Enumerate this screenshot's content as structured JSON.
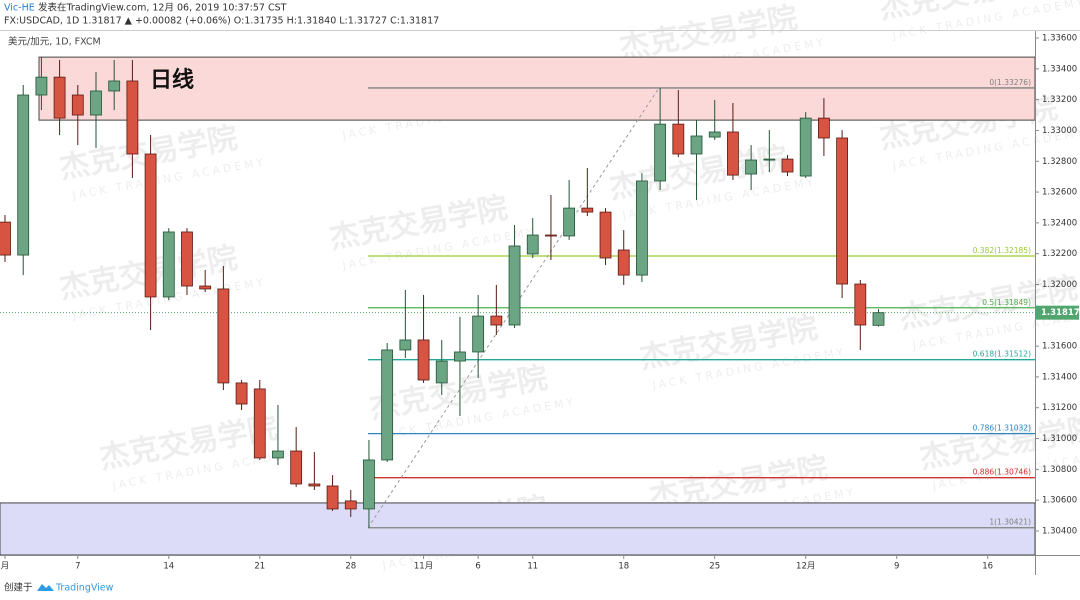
{
  "header": {
    "author": "Vic-HE",
    "published": "发表在TradingView.com, 12月 06, 2019 10:37:57 CST",
    "quote": "FX:USDCAD, 1D 1.31817 ▲ +0.00082 (+0.06%) O:1.31735 H:1.31840 L:1.31727 C:1.31817"
  },
  "footer": {
    "prefix": "创建于",
    "brand": "TradingView"
  },
  "watermark": {
    "cn": "杰克交易学院",
    "en": "JACK TRADING ACADEMY"
  },
  "chart_data": {
    "type": "candlestick",
    "legend": "美元/加元, 1D, FXCM",
    "up_color": "#6ba583",
    "down_color": "#d75442",
    "up_border": "#225437",
    "down_border": "#5b1a13",
    "open": [
      1.32405,
      1.32191,
      1.3323,
      1.33346,
      1.3323,
      1.331,
      1.33256,
      1.33321,
      1.32847,
      1.31919,
      1.32341,
      1.3199,
      1.31971,
      1.31361,
      1.31322,
      1.30874,
      1.30919,
      1.30705,
      1.30692,
      1.30595,
      1.30543,
      1.30861,
      1.31575,
      1.3164,
      1.31361,
      1.31503,
      1.31562,
      1.31795,
      1.31737,
      1.32198,
      1.32321,
      1.32315,
      1.32496,
      1.3247,
      1.32224,
      1.32061,
      1.32672,
      1.33041,
      1.32847,
      1.32957,
      1.3299,
      1.32717,
      1.32808,
      1.32814,
      1.32704,
      1.3308,
      1.32951,
      1.32003,
      1.31735
    ],
    "high": [
      1.32451,
      1.33295,
      1.33476,
      1.33457,
      1.33295,
      1.33379,
      1.33457,
      1.33457,
      1.3297,
      1.32366,
      1.32366,
      1.32094,
      1.3212,
      1.3138,
      1.3138,
      1.31218,
      1.31075,
      1.30913,
      1.30763,
      1.30666,
      1.30991,
      1.3162,
      1.31964,
      1.31932,
      1.3164,
      1.31789,
      1.31932,
      1.31997,
      1.32386,
      1.32431,
      1.32581,
      1.32678,
      1.32756,
      1.32496,
      1.32353,
      1.32723,
      1.33276,
      1.33262,
      1.33067,
      1.33197,
      1.33178,
      1.32905,
      1.33002,
      1.3284,
      1.33119,
      1.3321,
      1.33002,
      1.32029,
      1.3184
    ],
    "low": [
      1.32146,
      1.32061,
      1.33132,
      1.3297,
      1.32905,
      1.32886,
      1.33132,
      1.32691,
      1.31704,
      1.31899,
      1.31932,
      1.31951,
      1.31315,
      1.31185,
      1.30861,
      1.30828,
      1.30686,
      1.30666,
      1.3053,
      1.30491,
      1.30421,
      1.30848,
      1.31523,
      1.31361,
      1.31283,
      1.31146,
      1.31393,
      1.31672,
      1.31717,
      1.32172,
      1.32159,
      1.32289,
      1.32444,
      1.32126,
      1.31997,
      1.32016,
      1.32613,
      1.32827,
      1.32548,
      1.32938,
      1.32678,
      1.32613,
      1.3273,
      1.32704,
      1.32691,
      1.32834,
      1.31912,
      1.31575,
      1.31727
    ],
    "close": [
      1.32191,
      1.3323,
      1.33346,
      1.3308,
      1.331,
      1.33256,
      1.33321,
      1.32847,
      1.31919,
      1.32341,
      1.3199,
      1.31971,
      1.31361,
      1.31224,
      1.30874,
      1.30919,
      1.30705,
      1.30692,
      1.30543,
      1.30543,
      1.30861,
      1.31575,
      1.3164,
      1.3138,
      1.31503,
      1.31562,
      1.31795,
      1.31737,
      1.3225,
      1.32321,
      1.32315,
      1.32496,
      1.3247,
      1.32172,
      1.32061,
      1.32672,
      1.33041,
      1.32847,
      1.32964,
      1.3299,
      1.3271,
      1.32808,
      1.32814,
      1.3273,
      1.3308,
      1.32951,
      1.32003,
      1.31737,
      1.31817
    ],
    "xlim": [
      -0.275,
      56.6
    ],
    "xticks": [
      {
        "value": 0,
        "label": "月"
      },
      {
        "value": 4,
        "label": "7"
      },
      {
        "value": 9,
        "label": "14"
      },
      {
        "value": 14,
        "label": "21"
      },
      {
        "value": 19,
        "label": "28"
      },
      {
        "value": 23,
        "label": "11月"
      },
      {
        "value": 26,
        "label": "6"
      },
      {
        "value": 29,
        "label": "11"
      },
      {
        "value": 34,
        "label": "18"
      },
      {
        "value": 39,
        "label": "25"
      },
      {
        "value": 44,
        "label": "12月"
      },
      {
        "value": 49,
        "label": "9"
      },
      {
        "value": 54,
        "label": "16"
      }
    ],
    "ylim": [
      1.30244,
      1.33652
    ],
    "yticks": [
      {
        "value": 1.304,
        "label": "1.30400"
      },
      {
        "value": 1.306,
        "label": "1.30600"
      },
      {
        "value": 1.308,
        "label": "1.30800"
      },
      {
        "value": 1.31,
        "label": "1.31000"
      },
      {
        "value": 1.312,
        "label": "1.31200"
      },
      {
        "value": 1.314,
        "label": "1.31400"
      },
      {
        "value": 1.316,
        "label": "1.31600"
      },
      {
        "value": 1.318,
        "label": "1.31800"
      },
      {
        "value": 1.32,
        "label": "1.32000"
      },
      {
        "value": 1.322,
        "label": "1.32200"
      },
      {
        "value": 1.324,
        "label": "1.32400"
      },
      {
        "value": 1.326,
        "label": "1.32600"
      },
      {
        "value": 1.328,
        "label": "1.32800"
      },
      {
        "value": 1.33,
        "label": "1.33000"
      },
      {
        "value": 1.332,
        "label": "1.33200"
      },
      {
        "value": 1.334,
        "label": "1.33400"
      },
      {
        "value": 1.336,
        "label": "1.33600"
      }
    ],
    "last_price": {
      "value": 1.31817,
      "label": "1.31817",
      "color": "#53a570"
    },
    "zones": [
      {
        "label": "日线",
        "top": 1.33476,
        "bottom": 1.33067,
        "color": "#fbd9d9"
      },
      {
        "top": 1.30582,
        "bottom": 1.30244,
        "color": "#dcdcf8"
      }
    ],
    "fib_levels": [
      {
        "value": 1.33276,
        "label": "0(1.33276)",
        "color": "#808080"
      },
      {
        "value": 1.32185,
        "label": "0.382(1.32185)",
        "color": "#9acd32"
      },
      {
        "value": 1.31849,
        "label": "0.5(1.31849)",
        "color": "#4caf50"
      },
      {
        "value": 1.31512,
        "label": "0.618(1.31512)",
        "color": "#26a69a"
      },
      {
        "value": 1.31032,
        "label": "0.786(1.31032)",
        "color": "#2e86c1"
      },
      {
        "value": 1.30746,
        "label": "0.886(1.30746)",
        "color": "#d32f2f"
      },
      {
        "value": 1.30421,
        "label": "1(1.30421)",
        "color": "#808080"
      }
    ]
  }
}
